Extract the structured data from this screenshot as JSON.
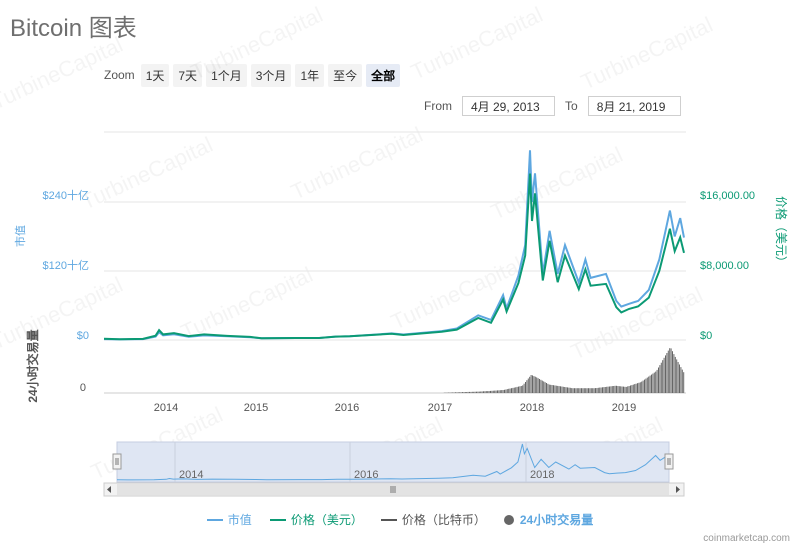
{
  "page": {
    "title": "Bitcoin 图表",
    "watermark": "TurbineCapital",
    "credit": "coinmarketcap.com"
  },
  "zoom": {
    "label": "Zoom",
    "buttons": [
      "1天",
      "7天",
      "1个月",
      "3个月",
      "1年",
      "至今",
      "全部"
    ],
    "active": "全部"
  },
  "range": {
    "from_label": "From",
    "from_value": "4月 29, 2013",
    "to_label": "To",
    "to_value": "8月 21, 2019"
  },
  "legend": [
    {
      "label": "市值",
      "color": "#5ea7e0",
      "kind": "line"
    },
    {
      "label": "价格（美元）",
      "color": "#0b9a74",
      "kind": "line"
    },
    {
      "label": "价格（比特币）",
      "color": "#555555",
      "kind": "line"
    },
    {
      "label": "24小时交易量",
      "color": "#666666",
      "kind": "dot"
    }
  ],
  "chart_data": {
    "type": "line",
    "x_ticks": [
      "2014",
      "2015",
      "2016",
      "2017",
      "2018",
      "2019"
    ],
    "x_range": [
      "2013-04-29",
      "2019-08-21"
    ],
    "left_axis": {
      "label": "市值",
      "ticks": [
        "$0",
        "$120十亿",
        "$240十亿"
      ],
      "range": [
        0,
        240
      ]
    },
    "right_axis": {
      "label": "价格（美元）",
      "ticks": [
        "$0",
        "$8,000.00",
        "$16,000.00"
      ],
      "range": [
        0,
        16000
      ]
    },
    "volume_axis": {
      "label": "24小时交易量",
      "ticks": [
        "0"
      ]
    },
    "colors": {
      "market_cap": "#5ea7e0",
      "price_usd": "#0b9a74",
      "volume": "#666666",
      "navigator": "#5ea7e0"
    },
    "series": [
      {
        "name": "市值",
        "unit": "十亿美元",
        "points": [
          [
            "2013-04-29",
            1.5
          ],
          [
            "2013-07-01",
            1.0
          ],
          [
            "2013-10-01",
            1.6
          ],
          [
            "2013-11-20",
            6
          ],
          [
            "2013-12-04",
            13.5
          ],
          [
            "2013-12-20",
            8
          ],
          [
            "2014-02-01",
            10
          ],
          [
            "2014-04-01",
            5.5
          ],
          [
            "2014-06-01",
            8
          ],
          [
            "2014-09-01",
            6.5
          ],
          [
            "2014-12-01",
            4.8
          ],
          [
            "2015-01-15",
            3
          ],
          [
            "2015-06-01",
            3.4
          ],
          [
            "2015-09-01",
            3.4
          ],
          [
            "2015-11-05",
            6
          ],
          [
            "2016-01-01",
            6.5
          ],
          [
            "2016-06-15",
            11.5
          ],
          [
            "2016-08-01",
            9.5
          ],
          [
            "2016-12-31",
            15.5
          ],
          [
            "2017-03-01",
            20
          ],
          [
            "2017-05-25",
            43
          ],
          [
            "2017-07-15",
            35
          ],
          [
            "2017-09-01",
            78
          ],
          [
            "2017-09-15",
            55
          ],
          [
            "2017-11-01",
            112
          ],
          [
            "2017-11-28",
            165
          ],
          [
            "2017-12-17",
            330
          ],
          [
            "2017-12-25",
            240
          ],
          [
            "2018-01-06",
            290
          ],
          [
            "2018-02-06",
            115
          ],
          [
            "2018-03-05",
            190
          ],
          [
            "2018-04-06",
            115
          ],
          [
            "2018-05-05",
            165
          ],
          [
            "2018-06-29",
            100
          ],
          [
            "2018-07-25",
            140
          ],
          [
            "2018-08-15",
            108
          ],
          [
            "2018-10-15",
            115
          ],
          [
            "2018-11-25",
            68
          ],
          [
            "2018-12-15",
            58
          ],
          [
            "2019-01-15",
            63
          ],
          [
            "2019-02-20",
            68
          ],
          [
            "2019-04-03",
            87
          ],
          [
            "2019-05-15",
            140
          ],
          [
            "2019-06-26",
            225
          ],
          [
            "2019-07-15",
            180
          ],
          [
            "2019-08-06",
            212
          ],
          [
            "2019-08-21",
            178
          ]
        ]
      },
      {
        "name": "价格（美元）",
        "unit": "USD",
        "points": [
          [
            "2013-04-29",
            135
          ],
          [
            "2013-07-01",
            90
          ],
          [
            "2013-10-01",
            125
          ],
          [
            "2013-11-20",
            500
          ],
          [
            "2013-12-04",
            1150
          ],
          [
            "2013-12-20",
            650
          ],
          [
            "2014-02-01",
            800
          ],
          [
            "2014-04-01",
            450
          ],
          [
            "2014-06-01",
            650
          ],
          [
            "2014-09-01",
            480
          ],
          [
            "2014-12-01",
            360
          ],
          [
            "2015-01-15",
            200
          ],
          [
            "2015-06-01",
            230
          ],
          [
            "2015-09-01",
            230
          ],
          [
            "2015-11-05",
            400
          ],
          [
            "2016-01-01",
            430
          ],
          [
            "2016-06-15",
            720
          ],
          [
            "2016-08-01",
            580
          ],
          [
            "2016-12-31",
            960
          ],
          [
            "2017-03-01",
            1200
          ],
          [
            "2017-05-25",
            2550
          ],
          [
            "2017-07-15",
            2000
          ],
          [
            "2017-09-01",
            4700
          ],
          [
            "2017-09-15",
            3300
          ],
          [
            "2017-11-01",
            6600
          ],
          [
            "2017-11-28",
            9800
          ],
          [
            "2017-12-17",
            19300
          ],
          [
            "2017-12-25",
            13800
          ],
          [
            "2018-01-06",
            17000
          ],
          [
            "2018-02-06",
            6900
          ],
          [
            "2018-03-05",
            11500
          ],
          [
            "2018-04-06",
            6700
          ],
          [
            "2018-05-05",
            9800
          ],
          [
            "2018-06-29",
            5900
          ],
          [
            "2018-07-25",
            8200
          ],
          [
            "2018-08-15",
            6300
          ],
          [
            "2018-10-15",
            6500
          ],
          [
            "2018-11-25",
            3800
          ],
          [
            "2018-12-15",
            3200
          ],
          [
            "2019-01-15",
            3600
          ],
          [
            "2019-02-20",
            3900
          ],
          [
            "2019-04-03",
            4900
          ],
          [
            "2019-05-15",
            8000
          ],
          [
            "2019-06-26",
            12900
          ],
          [
            "2019-07-15",
            10300
          ],
          [
            "2019-08-06",
            11900
          ],
          [
            "2019-08-21",
            10100
          ]
        ]
      },
      {
        "name": "24小时交易量",
        "unit": "十亿美元",
        "points": [
          [
            "2013-04-29",
            0.01
          ],
          [
            "2014-06-01",
            0.02
          ],
          [
            "2015-06-01",
            0.03
          ],
          [
            "2016-06-01",
            0.1
          ],
          [
            "2017-01-01",
            0.2
          ],
          [
            "2017-06-01",
            1.2
          ],
          [
            "2017-09-01",
            2.5
          ],
          [
            "2017-11-15",
            6
          ],
          [
            "2017-12-20",
            15
          ],
          [
            "2018-01-10",
            13
          ],
          [
            "2018-03-01",
            7
          ],
          [
            "2018-06-01",
            4
          ],
          [
            "2018-09-01",
            4
          ],
          [
            "2018-11-20",
            6
          ],
          [
            "2019-01-01",
            5
          ],
          [
            "2019-03-01",
            9
          ],
          [
            "2019-05-01",
            18
          ],
          [
            "2019-06-26",
            38
          ],
          [
            "2019-07-15",
            30
          ],
          [
            "2019-08-21",
            16
          ]
        ]
      }
    ],
    "navigator_ticks": [
      "2014",
      "2016",
      "2018"
    ]
  }
}
